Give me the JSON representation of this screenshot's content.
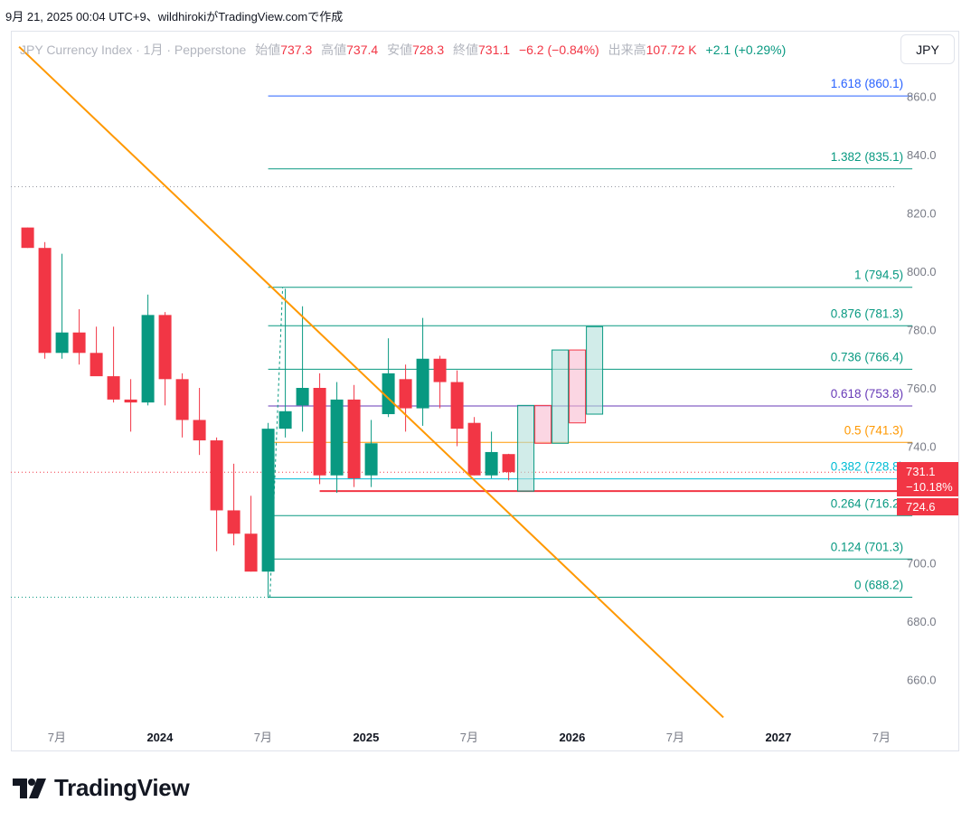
{
  "caption": "9月 21, 2025 00:04 UTC+9、wildhirokiがTradingView.comで作成",
  "legend": {
    "symbol": "JPY Currency Index · 1月 · Pepperstone",
    "open_label": "始値",
    "open": "737.3",
    "high_label": "高値",
    "high": "737.4",
    "low_label": "安値",
    "low": "728.3",
    "close_label": "終値",
    "close": "731.1",
    "change": "−6.2 (−0.84%)",
    "volume_label": "出来高",
    "volume": "107.72 K",
    "volume_change": "+2.1 (+0.29%)"
  },
  "currency_button": "JPY",
  "brand": "TradingView",
  "price_badges": {
    "last": "731.1",
    "pct": "−10.18%",
    "level": "724.6"
  },
  "colors": {
    "up": "#089981",
    "down": "#f23645",
    "trendline": "#ff9800",
    "fib_teal": "#089981",
    "fib_blue": "#2962ff",
    "fib_purple": "#673ab7",
    "fib_orange": "#ff9800",
    "projection_up": "#b2dfdb",
    "projection_down": "#f8bbd0"
  },
  "chart_data": {
    "type": "candlestick",
    "interval": "1M",
    "ylim": [
      645,
      875
    ],
    "y_ticks": [
      660,
      680,
      700,
      720,
      740,
      760,
      780,
      800,
      820,
      840,
      860
    ],
    "y_tick_labels": [
      "660.0",
      "680.0",
      "700.0",
      "720.0",
      "740.0",
      "760.0",
      "780.0",
      "800.0",
      "820.0",
      "840.0",
      "860.0"
    ],
    "x_ticks": [
      {
        "label": "7月",
        "bold": false,
        "index": 1.7
      },
      {
        "label": "2024",
        "bold": true,
        "index": 7.7
      },
      {
        "label": "7月",
        "bold": false,
        "index": 13.7
      },
      {
        "label": "2025",
        "bold": true,
        "index": 19.7
      },
      {
        "label": "7月",
        "bold": false,
        "index": 25.7
      },
      {
        "label": "2026",
        "bold": true,
        "index": 31.7
      },
      {
        "label": "7月",
        "bold": false,
        "index": 37.7
      },
      {
        "label": "2027",
        "bold": true,
        "index": 43.7
      },
      {
        "label": "7月",
        "bold": false,
        "index": 49.7
      }
    ],
    "candles": [
      {
        "i": 0,
        "o": 815,
        "h": 815,
        "l": 808,
        "c": 808
      },
      {
        "i": 1,
        "o": 808,
        "h": 810,
        "l": 770,
        "c": 772
      },
      {
        "i": 2,
        "o": 772,
        "h": 806,
        "l": 770,
        "c": 779
      },
      {
        "i": 3,
        "o": 779,
        "h": 787,
        "l": 768,
        "c": 772
      },
      {
        "i": 4,
        "o": 772,
        "h": 781,
        "l": 765,
        "c": 764
      },
      {
        "i": 5,
        "o": 764,
        "h": 781,
        "l": 755,
        "c": 756
      },
      {
        "i": 6,
        "o": 756,
        "h": 763,
        "l": 745,
        "c": 755
      },
      {
        "i": 7,
        "o": 755,
        "h": 792,
        "l": 754,
        "c": 785
      },
      {
        "i": 8,
        "o": 785,
        "h": 786,
        "l": 754,
        "c": 763
      },
      {
        "i": 9,
        "o": 763,
        "h": 765,
        "l": 743,
        "c": 749
      },
      {
        "i": 10,
        "o": 749,
        "h": 760,
        "l": 737,
        "c": 742
      },
      {
        "i": 11,
        "o": 742,
        "h": 743,
        "l": 704,
        "c": 718
      },
      {
        "i": 12,
        "o": 718,
        "h": 734,
        "l": 706,
        "c": 710
      },
      {
        "i": 13,
        "o": 710,
        "h": 723,
        "l": 697,
        "c": 697
      },
      {
        "i": 14,
        "o": 697,
        "h": 748,
        "l": 688,
        "c": 746
      },
      {
        "i": 15,
        "o": 746,
        "h": 794,
        "l": 743,
        "c": 752
      },
      {
        "i": 16,
        "o": 754,
        "h": 788,
        "l": 745,
        "c": 760
      },
      {
        "i": 17,
        "o": 760,
        "h": 765,
        "l": 727,
        "c": 730
      },
      {
        "i": 18,
        "o": 730,
        "h": 762,
        "l": 724,
        "c": 756
      },
      {
        "i": 19,
        "o": 756,
        "h": 761,
        "l": 726,
        "c": 729
      },
      {
        "i": 20,
        "o": 730,
        "h": 749,
        "l": 726,
        "c": 741
      },
      {
        "i": 21,
        "o": 751,
        "h": 777,
        "l": 750,
        "c": 765
      },
      {
        "i": 22,
        "o": 763,
        "h": 768,
        "l": 745,
        "c": 753
      },
      {
        "i": 23,
        "o": 753,
        "h": 784,
        "l": 747,
        "c": 770
      },
      {
        "i": 24,
        "o": 770,
        "h": 771,
        "l": 753,
        "c": 762
      },
      {
        "i": 25,
        "o": 762,
        "h": 766,
        "l": 740,
        "c": 746
      },
      {
        "i": 26,
        "o": 748,
        "h": 750,
        "l": 730,
        "c": 730
      },
      {
        "i": 27,
        "o": 730,
        "h": 745,
        "l": 729,
        "c": 738
      },
      {
        "i": 28,
        "o": 737.3,
        "h": 737.4,
        "l": 728.3,
        "c": 731.1
      }
    ],
    "projection_boxes": [
      {
        "i": 29,
        "o": 724.6,
        "c": 754,
        "dir": "up"
      },
      {
        "i": 30,
        "o": 754,
        "c": 741,
        "dir": "down"
      },
      {
        "i": 31,
        "o": 741,
        "c": 773,
        "dir": "up"
      },
      {
        "i": 32,
        "o": 773,
        "c": 748,
        "dir": "down"
      },
      {
        "i": 33,
        "o": 751,
        "c": 781,
        "dir": "up"
      }
    ],
    "fibonacci": {
      "start_index": 14,
      "end_index": 51.5,
      "levels": [
        {
          "ratio": "0",
          "value": 688.2,
          "label": "0 (688.2)",
          "color": "#089981"
        },
        {
          "ratio": "0.124",
          "value": 701.3,
          "label": "0.124 (701.3)",
          "color": "#089981"
        },
        {
          "ratio": "0.264",
          "value": 716.2,
          "label": "0.264 (716.2)",
          "color": "#089981"
        },
        {
          "ratio": "0.382",
          "value": 728.8,
          "label": "0.382 (728.8)",
          "color": "#00bcd4"
        },
        {
          "ratio": "0.5",
          "value": 741.3,
          "label": "0.5 (741.3)",
          "color": "#ff9800"
        },
        {
          "ratio": "0.618",
          "value": 753.8,
          "label": "0.618 (753.8)",
          "color": "#673ab7"
        },
        {
          "ratio": "0.736",
          "value": 766.4,
          "label": "0.736 (766.4)",
          "color": "#089981"
        },
        {
          "ratio": "0.876",
          "value": 781.3,
          "label": "0.876 (781.3)",
          "color": "#089981"
        },
        {
          "ratio": "1",
          "value": 794.5,
          "label": "1 (794.5)",
          "color": "#089981"
        },
        {
          "ratio": "1.382",
          "value": 835.1,
          "label": "1.382 (835.1)",
          "color": "#089981"
        },
        {
          "ratio": "1.618",
          "value": 860.1,
          "label": "1.618 (860.1)",
          "color": "#2962ff"
        }
      ]
    },
    "support_line": {
      "value": 724.6,
      "from_index": 17,
      "to_index": 51.5
    },
    "dotted_lines": [
      {
        "value": 829.0,
        "color": "#9598a1"
      },
      {
        "value": 731.1,
        "color": "#f23645"
      },
      {
        "value": 688.2,
        "color": "#089981"
      }
    ],
    "trendline": {
      "x1": -0.5,
      "y1": 877,
      "x2": 40.5,
      "y2": 647
    }
  }
}
